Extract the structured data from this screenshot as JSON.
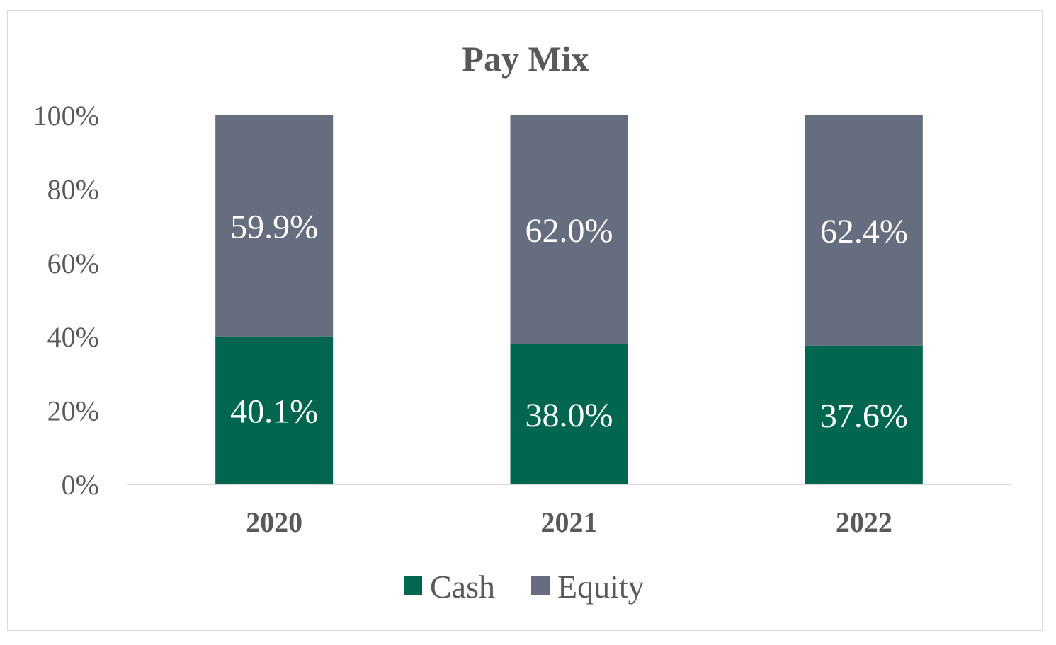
{
  "chart_data": {
    "type": "bar",
    "stacked": true,
    "title": "Pay Mix",
    "categories": [
      "2020",
      "2021",
      "2022"
    ],
    "series": [
      {
        "name": "Cash",
        "values": [
          40.1,
          38.0,
          37.6
        ],
        "labels": [
          "40.1%",
          "38.0%",
          "37.6%"
        ],
        "color": "#006650"
      },
      {
        "name": "Equity",
        "values": [
          59.9,
          62.0,
          62.4
        ],
        "labels": [
          "59.9%",
          "62.0%",
          "62.4%"
        ],
        "color": "#656d7e"
      }
    ],
    "ylim": [
      0,
      100
    ],
    "yticks": [
      "0%",
      "20%",
      "40%",
      "60%",
      "80%",
      "100%"
    ],
    "xlabel": "",
    "ylabel": "",
    "grid": false,
    "legend_position": "bottom"
  }
}
